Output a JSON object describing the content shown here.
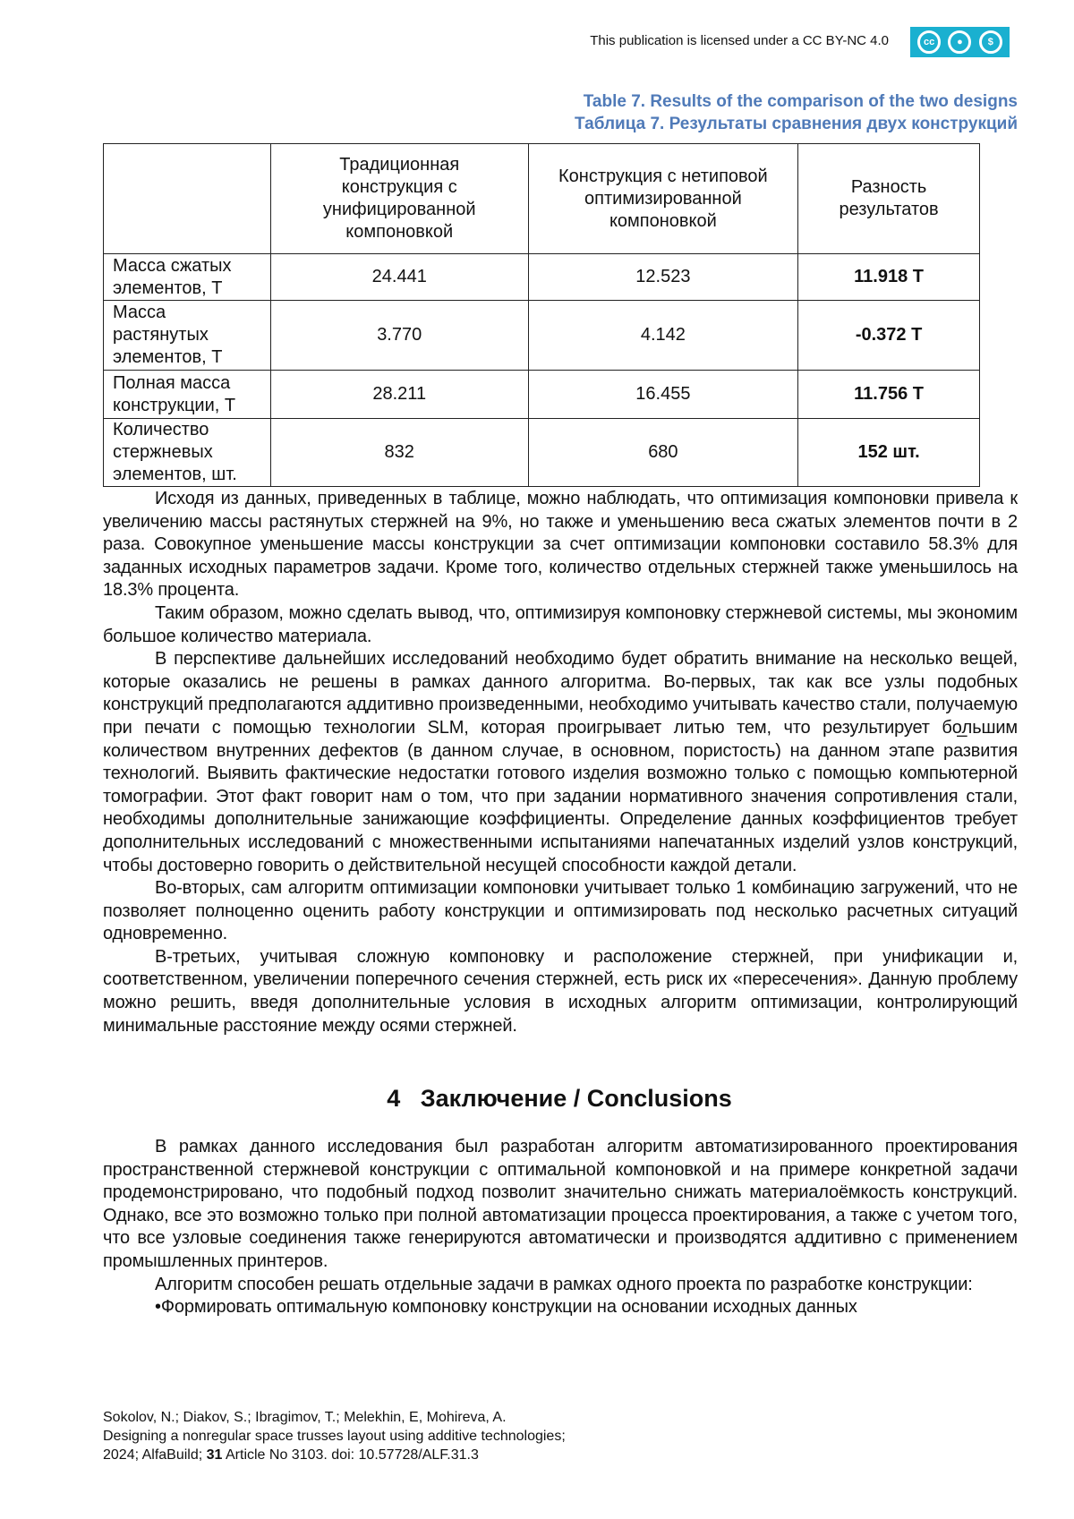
{
  "header": {
    "license_text": "This publication is licensed under a CC BY-NC 4.0",
    "license_badge": "CC BY-NC",
    "badge_color": "#1ab0d0"
  },
  "table": {
    "caption_en": "Table 7. Results of the comparison of the two designs",
    "caption_ru": "Таблица 7. Результаты сравнения двух конструкций",
    "caption_color": "#4f7ab8",
    "columns": [
      "",
      "Традиционная конструкция с унифицированной компоновкой",
      "Конструкция с нетиповой оптимизированной компоновкой",
      "Разность результатов"
    ],
    "rows": [
      [
        "Масса сжатых элементов, Т",
        "24.441",
        "12.523",
        "11.918 Т"
      ],
      [
        "Масса растянутых элементов, Т",
        "3.770",
        "4.142",
        "-0.372 Т"
      ],
      [
        "Полная масса конструкции, Т",
        "28.211",
        "16.455",
        "11.756 Т"
      ],
      [
        "Количество стержневых элементов, шт.",
        "832",
        "680",
        "152 шт."
      ]
    ]
  },
  "body": {
    "paragraphs": [
      "Исходя из данных, приведенных в таблице, можно наблюдать, что оптимизация компоновки привела к увеличению массы растянутых стержней на 9%, но также и уменьшению веса сжатых элементов почти в 2 раза. Совокупное уменьшение массы конструкции за счет оптимизации компоновки составило 58.3% для заданных исходных параметров задачи. Кроме того, количество отдельных стержней также уменьшилось на 18.3% процента.",
      "Таким образом, можно сделать вывод, что, оптимизируя компоновку стержневой системы, мы экономим большое количество материала.",
      "В перспективе дальнейших исследований необходимо будет обратить внимание на несколько вещей, которые оказались не решены в рамках данного алгоритма. Во-первых, так как все узлы подобных конструкций предполагаются аддитивно произведенными, необходимо учитывать качество стали, получаемую при печати с помощью технологии SLM, которая проигрывает литью тем, что результирует бо̲льшим количеством внутренних дефектов (в данном случае, в основном, пористость) на данном этапе развития технологий. Выявить фактические недостатки готового изделия возможно только с помощью компьютерной томографии. Этот факт говорит нам о том, что при задании нормативного значения сопротивления стали, необходимы дополнительные занижающие коэффициенты. Определение данных коэффициентов требует дополнительных исследований с множественными испытаниями напечатанных изделий узлов конструкций, чтобы достоверно говорить о действительной несущей способности каждой детали.",
      "Во-вторых, сам алгоритм оптимизации компоновки учитывает только 1 комбинацию загружений, что не позволяет полноценно оценить работу конструкции и оптимизировать под несколько расчетных ситуаций одновременно.",
      "В-третьих, учитывая сложную компоновку и расположение стержней, при унификации и, соответственном, увеличении поперечного сечения стержней, есть риск их «пересечения». Данную проблему можно решить, введя дополнительные условия в исходных алгоритм оптимизации, контролирующий минимальные расстояние между осями стержней."
    ]
  },
  "conclusions": {
    "heading": "4   Заключение / Conclusions",
    "paragraphs": [
      "В рамках данного исследования был разработан алгоритм автоматизированного проектирования пространственной стержневой конструкции с оптимальной компоновкой и на примере конкретной задачи продемонстрировано, что подобный подход позволит значительно снижать материалоёмкость конструкций. Однако, все это возможно только при полной автоматизации процесса проектирования, а также с учетом того, что все узловые соединения также генерируются автоматически и производятся аддитивно с применением промышленных принтеров.",
      "Алгоритм способен решать отдельные задачи в рамках одного проекта по разработке конструкции:"
    ],
    "bullet": "Формировать оптимальную компоновку конструкции на основании исходных данных"
  },
  "footer": {
    "authors": "Sokolov, N.; Diakov, S.; Ibragimov, T.; Melekhin, E, Mohireva, A.",
    "title": "Designing a nonregular space trusses layout using additive technologies;",
    "citation_prefix": "2024; AlfaBuild; ",
    "volume": "31",
    "citation_suffix": " Article No 3103. doi: 10.57728/ALF.31.3"
  }
}
